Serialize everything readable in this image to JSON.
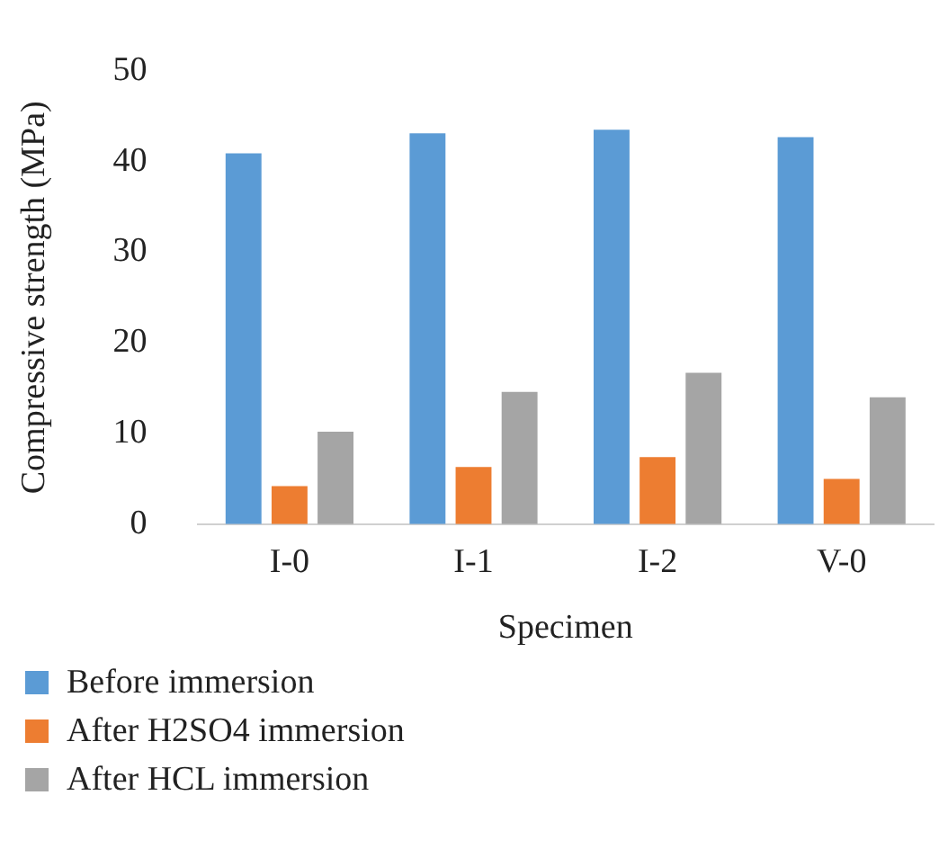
{
  "chart_data": {
    "type": "bar",
    "xlabel": "Specimen",
    "ylabel": "Compressive strength (MPa)",
    "categories": [
      "I-0",
      "I-1",
      "I-2",
      "V-0"
    ],
    "series": [
      {
        "name": "Before immersion",
        "color": "#5b9bd5",
        "values": [
          40.9,
          43.1,
          43.5,
          42.7
        ]
      },
      {
        "name": "After H2SO4 immersion",
        "color": "#ed7d31",
        "values": [
          4.2,
          6.3,
          7.4,
          5.0
        ]
      },
      {
        "name": "After HCL immersion",
        "color": "#a5a5a5",
        "values": [
          10.2,
          14.6,
          16.7,
          14.0
        ]
      }
    ],
    "ylim": [
      0,
      50
    ],
    "yticks": [
      0,
      10,
      20,
      30,
      40,
      50
    ],
    "grid": false,
    "legend": "bottom"
  }
}
